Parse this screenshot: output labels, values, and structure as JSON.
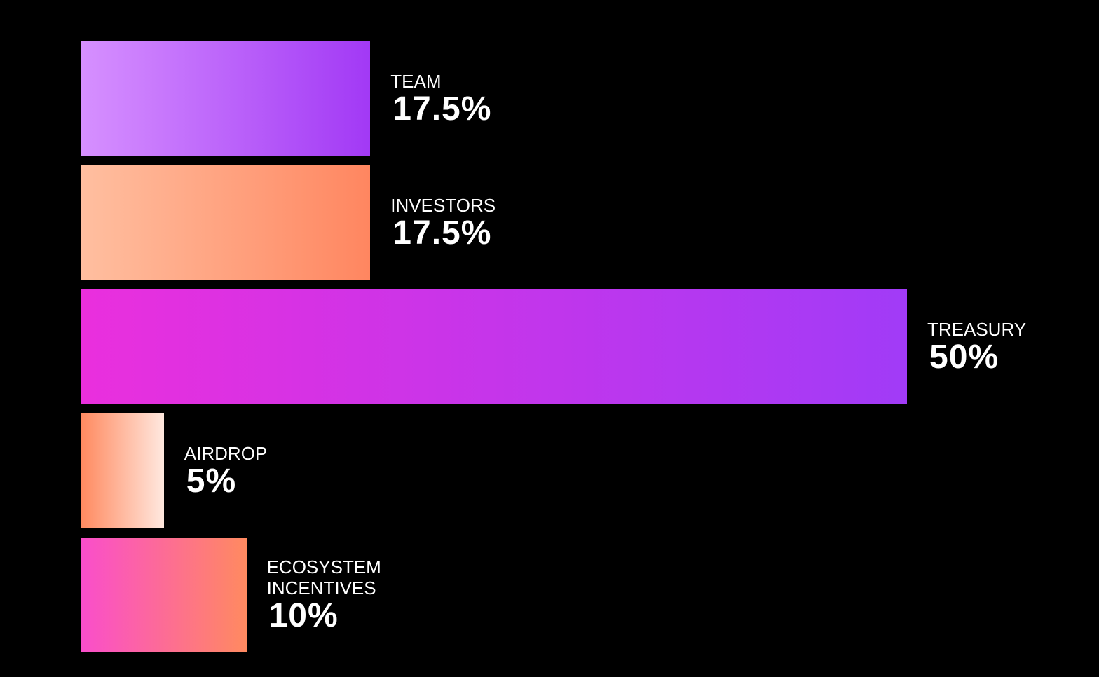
{
  "chart_data": {
    "type": "bar",
    "orientation": "horizontal",
    "categories": [
      "TEAM",
      "INVESTORS",
      "TREASURY",
      "AIRDROP",
      "ECOSYSTEM INCENTIVES"
    ],
    "values": [
      17.5,
      17.5,
      50,
      5,
      10
    ],
    "value_labels": [
      "17.5%",
      "17.5%",
      "50%",
      "5%",
      "10%"
    ],
    "colors": [
      [
        "#d690ff",
        "#a239f5"
      ],
      [
        "#ffbfa0",
        "#ff8660"
      ],
      [
        "#ea2fdd",
        "#a13bf7"
      ],
      [
        "#ff8a60",
        "#ffe8df"
      ],
      [
        "#fa4ecb",
        "#ff8a60"
      ]
    ]
  }
}
